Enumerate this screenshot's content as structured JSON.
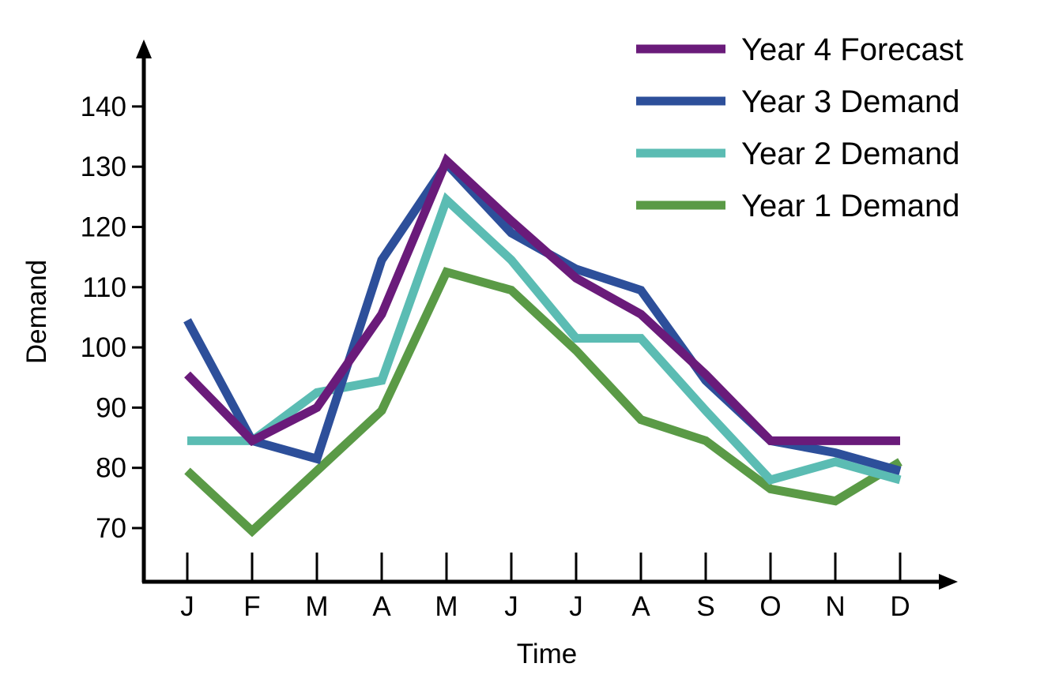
{
  "chart_data": {
    "type": "line",
    "xlabel": "Time",
    "ylabel": "Demand",
    "categories": [
      "J",
      "F",
      "M",
      "A",
      "M",
      "J",
      "J",
      "A",
      "S",
      "O",
      "N",
      "D"
    ],
    "yticks": [
      70,
      80,
      90,
      100,
      110,
      120,
      130,
      140
    ],
    "ylim": [
      61,
      148
    ],
    "grid": false,
    "legend_position": "top-right",
    "series": [
      {
        "name": "Year 4 Forecast",
        "color": "#6a1b7a",
        "values": [
          95.5,
          84.5,
          90,
          105.5,
          131,
          121,
          111.5,
          105.5,
          95.5,
          84.5,
          84.5,
          84.5
        ]
      },
      {
        "name": "Year 3 Demand",
        "color": "#2d4f9a",
        "values": [
          104.5,
          84.5,
          81.5,
          114.5,
          130.5,
          119,
          113,
          109.5,
          94.5,
          84.5,
          82.5,
          79.5
        ]
      },
      {
        "name": "Year 2  Demand",
        "color": "#5bbcb3",
        "values": [
          84.5,
          84.5,
          92.5,
          94.5,
          124.5,
          114.5,
          101.5,
          101.5,
          89.5,
          78,
          81,
          78
        ]
      },
      {
        "name": "Year 1 Demand",
        "color": "#5a9a46",
        "values": [
          79.5,
          69.5,
          79.5,
          89.5,
          112.5,
          109.5,
          99.5,
          88,
          84.5,
          76.5,
          74.5,
          81
        ]
      }
    ]
  }
}
